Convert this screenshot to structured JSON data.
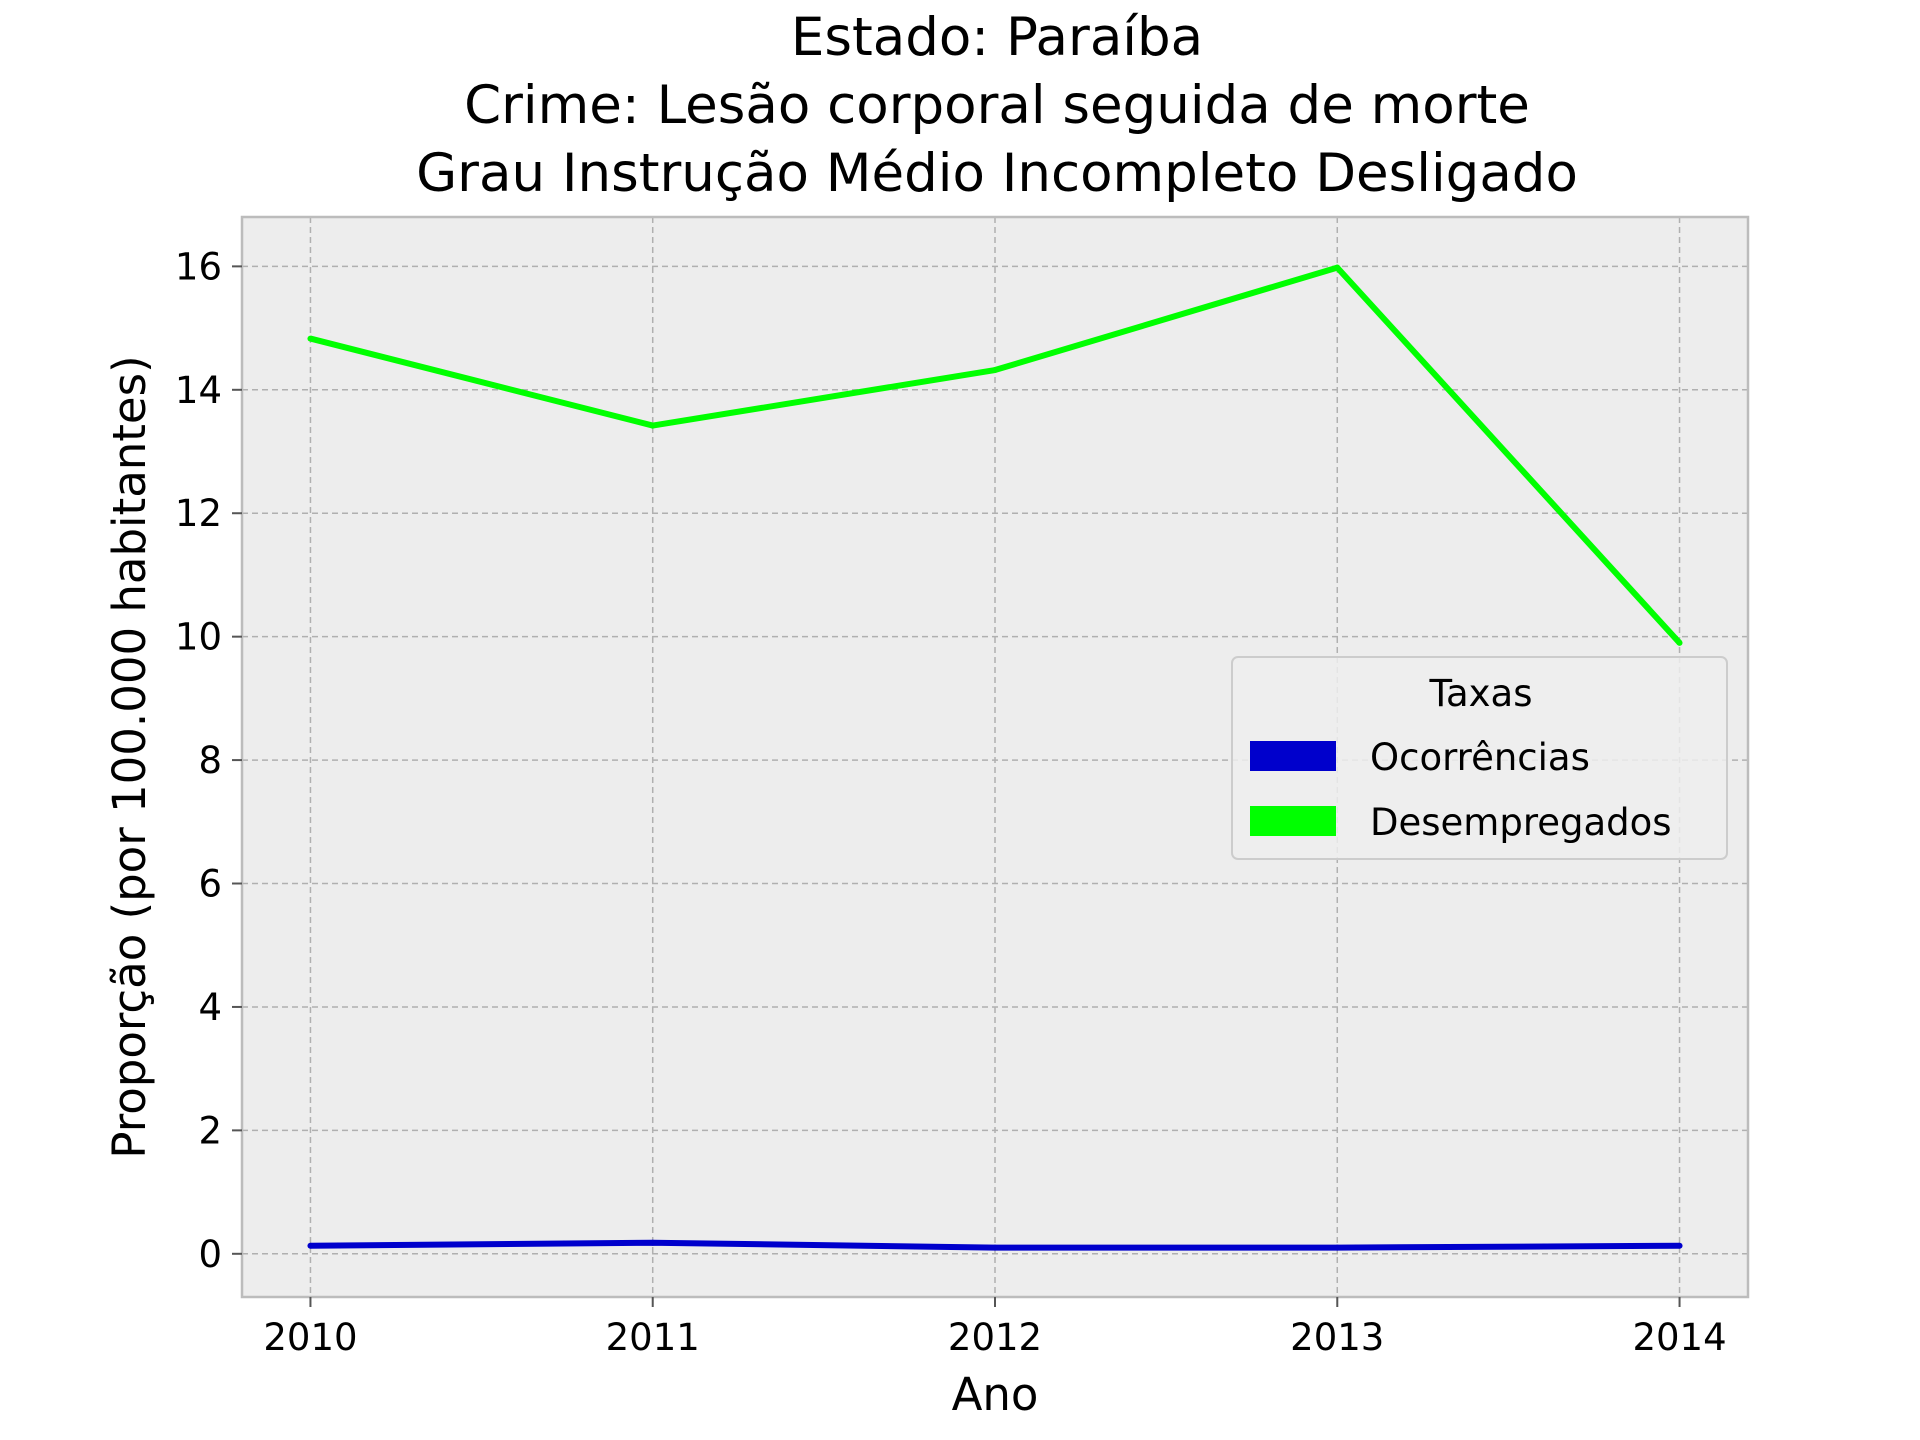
{
  "chart_data": {
    "type": "line",
    "title_lines": [
      "Estado: Paraíba",
      "Crime: Lesão corporal seguida de morte",
      "Grau Instrução  Médio Incompleto   Desligado"
    ],
    "xlabel": "Ano",
    "ylabel": "Proporção (por 100.000 habitantes)",
    "x": [
      2010,
      2011,
      2012,
      2013,
      2014
    ],
    "x_tick_labels": [
      "2010",
      "2011",
      "2012",
      "2013",
      "2014"
    ],
    "y_ticks": [
      0,
      2,
      4,
      6,
      8,
      10,
      12,
      14,
      16
    ],
    "y_tick_labels": [
      "0",
      "2",
      "4",
      "6",
      "8",
      "10",
      "12",
      "14",
      "16"
    ],
    "xlim": [
      2009.8,
      2014.2
    ],
    "ylim": [
      -0.7,
      16.8
    ],
    "grid": true,
    "legend": {
      "title": "Taxas",
      "placement": "center-right"
    },
    "series": [
      {
        "name": "Ocorrências",
        "color": "#0000cc",
        "values": [
          0.13,
          0.18,
          0.1,
          0.1,
          0.13
        ]
      },
      {
        "name": "Desempregados",
        "color": "#00ff00",
        "values": [
          14.83,
          13.42,
          14.32,
          15.98,
          9.9
        ]
      }
    ]
  },
  "colors": {
    "plot_background": "#ededed",
    "grid": "#b0b0b0",
    "frame": "#bcbcbc"
  }
}
